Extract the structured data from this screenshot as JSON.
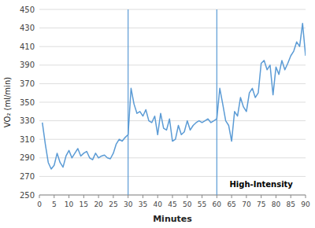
{
  "chart_data": {
    "type": "line",
    "xlabel": "Minutes",
    "ylabel": "VO₂ (ml/min)",
    "xlim": [
      0,
      90
    ],
    "ylim": [
      250,
      450
    ],
    "xticks": [
      0,
      5,
      10,
      15,
      20,
      25,
      30,
      35,
      40,
      45,
      50,
      55,
      60,
      65,
      70,
      75,
      80,
      85,
      90
    ],
    "yticks": [
      250,
      270,
      290,
      310,
      330,
      350,
      370,
      390,
      410,
      430,
      450
    ],
    "grid": true,
    "color": "#5B9BD5",
    "vlines": [
      30,
      60
    ],
    "annotations": [
      {
        "text": "High-Intensity",
        "x": 75,
        "y": 256
      }
    ],
    "x": [
      1,
      2,
      3,
      4,
      5,
      6,
      7,
      8,
      9,
      10,
      11,
      12,
      13,
      14,
      15,
      16,
      17,
      18,
      19,
      20,
      21,
      22,
      23,
      24,
      25,
      26,
      27,
      28,
      29,
      30,
      31,
      32,
      33,
      34,
      35,
      36,
      37,
      38,
      39,
      40,
      41,
      42,
      43,
      44,
      45,
      46,
      47,
      48,
      49,
      50,
      51,
      52,
      53,
      54,
      55,
      56,
      57,
      58,
      59,
      60,
      61,
      62,
      63,
      64,
      65,
      66,
      67,
      68,
      69,
      70,
      71,
      72,
      73,
      74,
      75,
      76,
      77,
      78,
      79,
      80,
      81,
      82,
      83,
      84,
      85,
      86,
      87,
      88,
      89,
      90
    ],
    "values": [
      328,
      305,
      285,
      278,
      282,
      295,
      285,
      280,
      292,
      298,
      290,
      295,
      300,
      292,
      295,
      297,
      290,
      288,
      295,
      290,
      292,
      293,
      290,
      289,
      295,
      305,
      310,
      308,
      312,
      315,
      365,
      348,
      338,
      340,
      335,
      342,
      330,
      328,
      335,
      315,
      338,
      322,
      320,
      332,
      308,
      310,
      325,
      315,
      318,
      330,
      320,
      325,
      328,
      330,
      328,
      330,
      332,
      328,
      330,
      332,
      365,
      348,
      330,
      325,
      308,
      340,
      335,
      355,
      345,
      340,
      360,
      365,
      355,
      360,
      392,
      395,
      385,
      390,
      358,
      388,
      380,
      395,
      385,
      392,
      400,
      405,
      415,
      410,
      435,
      400
    ]
  }
}
